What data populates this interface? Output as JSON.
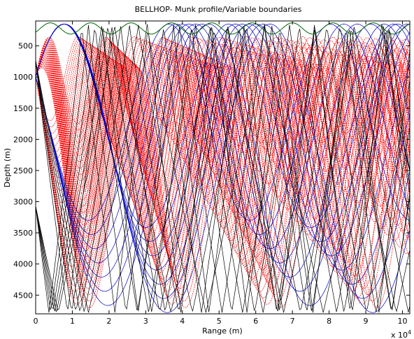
{
  "chart_data": {
    "type": "line",
    "title": "BELLHOP- Munk profile/Variable boundaries",
    "xlabel": "Range (m)",
    "ylabel": "Depth (m)",
    "x_exponent_label": "x 10",
    "x_exponent_power": "4",
    "xlim": [
      0,
      102000
    ],
    "ylim": [
      4800,
      100
    ],
    "y_reversed": true,
    "x_ticks": [
      0,
      10000,
      20000,
      30000,
      40000,
      50000,
      60000,
      70000,
      80000,
      90000,
      100000
    ],
    "x_tick_labels": [
      "0",
      "1",
      "2",
      "3",
      "4",
      "5",
      "6",
      "7",
      "8",
      "9",
      "10"
    ],
    "y_ticks": [
      500,
      1000,
      1500,
      2000,
      2500,
      3000,
      3500,
      4000,
      4500
    ],
    "y_tick_labels": [
      "500",
      "1000",
      "1500",
      "2000",
      "2500",
      "3000",
      "3500",
      "4000",
      "4500"
    ],
    "grid": false,
    "source": {
      "range": 0,
      "depth": 1000
    },
    "surface": {
      "name": "Surface boundary",
      "color": "#006400",
      "mean_depth": 220,
      "amplitude": 90,
      "period": 11000
    },
    "series": [
      {
        "color": "#ff0000",
        "style": "dotted",
        "count": 60,
        "depth_min": 350,
        "depth_max": 1700,
        "half_wave": 9000
      },
      {
        "color": "#0000c8",
        "style": "solid",
        "count": 14,
        "depth_min": 3300,
        "depth_max": 4780
      },
      {
        "color": "#000000",
        "style": "solid",
        "count": 12,
        "depth_min": 150,
        "depth_max": 4780
      }
    ]
  }
}
